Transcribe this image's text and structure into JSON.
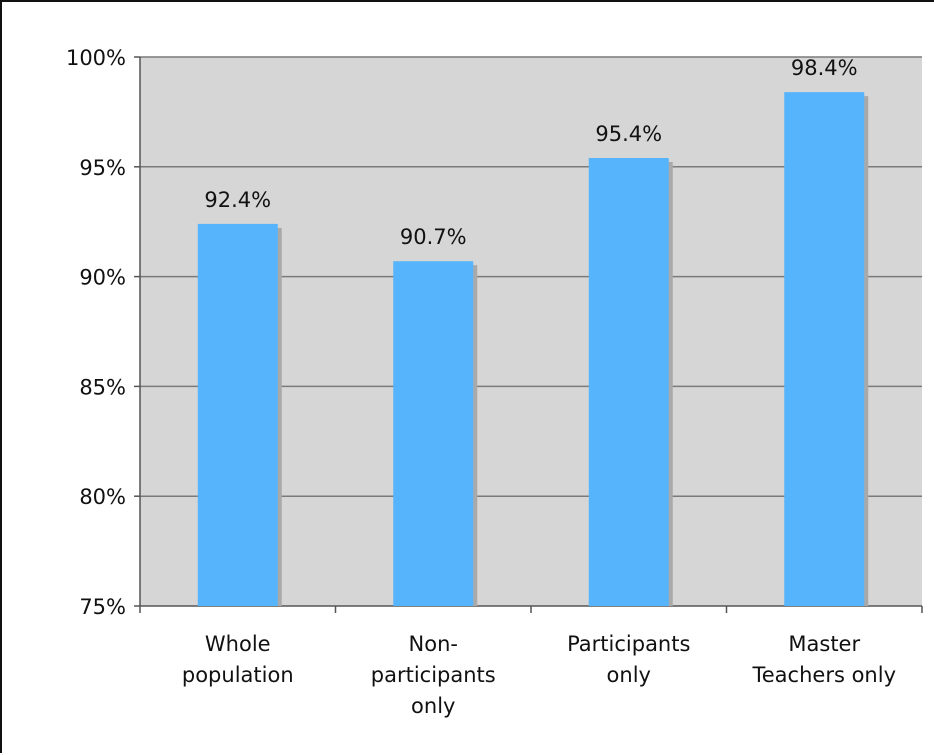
{
  "chart_data": {
    "type": "bar",
    "categories": [
      [
        "Whole",
        "population"
      ],
      [
        "Non-",
        "participants",
        "only"
      ],
      [
        "Participants",
        "only"
      ],
      [
        "Master",
        "Teachers only"
      ]
    ],
    "values": [
      92.4,
      90.7,
      95.4,
      98.4
    ],
    "data_labels": [
      "92.4%",
      "90.7%",
      "95.4%",
      "98.4%"
    ],
    "y_ticks": [
      100,
      95,
      90,
      85,
      80,
      75
    ],
    "y_tick_labels": [
      "100%",
      "95%",
      "90%",
      "85%",
      "80%",
      "75%"
    ],
    "ylim": [
      75,
      100
    ],
    "grid": true,
    "legend": "none",
    "colors": {
      "bar": "#55b4fc",
      "bar_shadow": "#a9a9a9",
      "plot_background": "#d6d6d6",
      "grid": "#7a7a7a",
      "axis": "#555555"
    }
  }
}
